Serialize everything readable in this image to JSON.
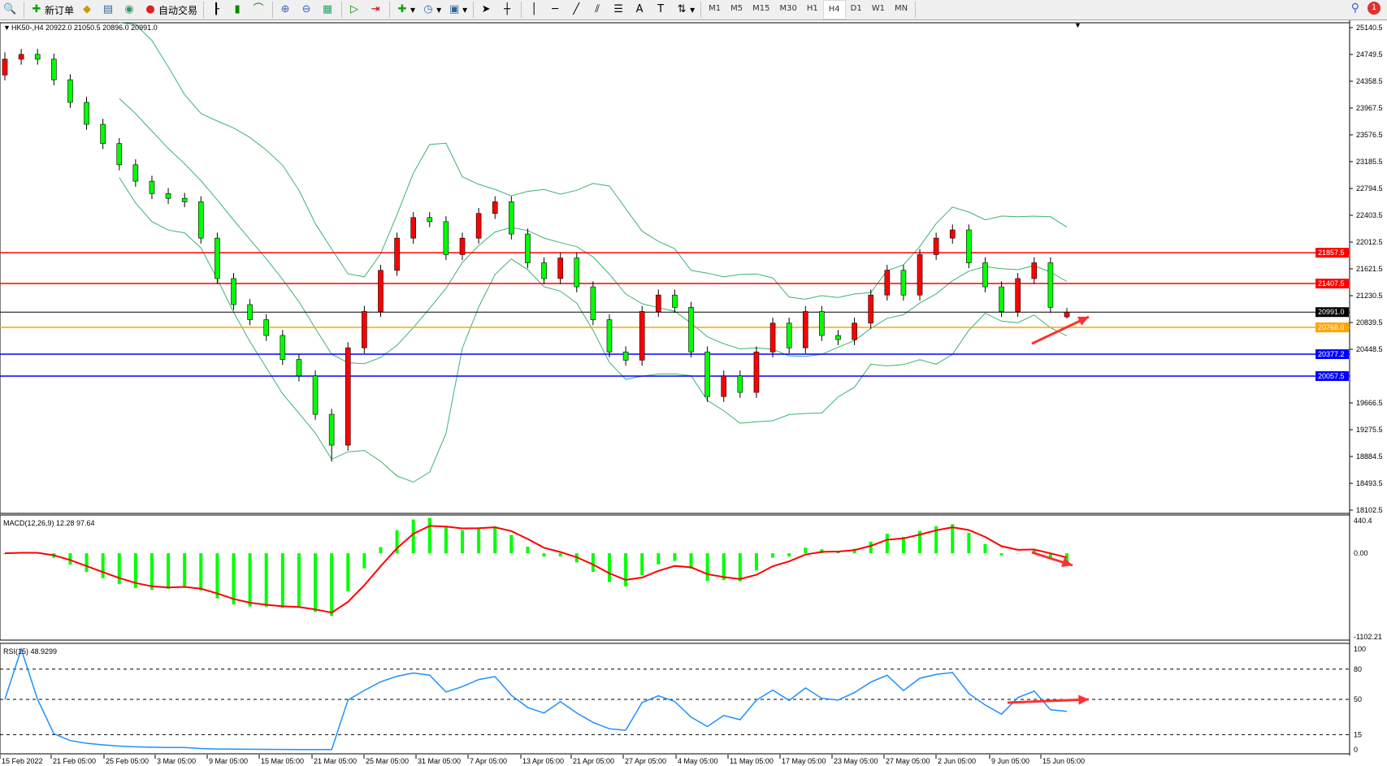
{
  "toolbar": {
    "new_order_label": "新订单",
    "auto_trade_label": "自动交易",
    "timeframes": [
      "M1",
      "M5",
      "M15",
      "M30",
      "H1",
      "H4",
      "D1",
      "W1",
      "MN"
    ],
    "active_timeframe": "H4",
    "notification_count": "1"
  },
  "chart": {
    "header": "HK50-,H4  20922.0 21050.5 20896.0 20991.0",
    "symbol": "HK50-",
    "price_axis": [
      "25140.5",
      "24749.5",
      "24358.5",
      "23967.5",
      "23576.5",
      "23185.5",
      "22794.5",
      "22403.5",
      "22012.5",
      "21621.5",
      "21230.5",
      "20839.5",
      "20448.5",
      "19666.5",
      "19275.5",
      "18884.5",
      "18493.5",
      "18102.5"
    ],
    "price_range": [
      18102.5,
      25140.5
    ],
    "levels": [
      {
        "price": 21857.5,
        "label": "21857.5",
        "color": "#ff0000"
      },
      {
        "price": 21407.5,
        "label": "21407.5",
        "color": "#ff0000"
      },
      {
        "price": 20991.0,
        "label": "20991.0",
        "color": "#000000"
      },
      {
        "price": 20768.0,
        "label": "20768.0",
        "color": "#ffa500"
      },
      {
        "price": 20377.2,
        "label": "20377.2",
        "color": "#0000ff"
      },
      {
        "price": 20057.5,
        "label": "20057.5",
        "color": "#0000ff"
      }
    ],
    "colors": {
      "up": "#ff0000",
      "down": "#00ff00",
      "bands": "#3cb371",
      "macd_hist": "#00ff00",
      "signal": "#ff0000",
      "rsi": "#1e90ff",
      "arrow": "#ff3030"
    },
    "candles": [
      [
        24450,
        24780,
        24370,
        24680
      ],
      [
        24680,
        24830,
        24600,
        24750
      ],
      [
        24750,
        24830,
        24600,
        24680
      ],
      [
        24680,
        24760,
        24300,
        24380
      ],
      [
        24380,
        24460,
        23970,
        24050
      ],
      [
        24050,
        24130,
        23650,
        23730
      ],
      [
        23730,
        23810,
        23370,
        23450
      ],
      [
        23450,
        23530,
        23060,
        23140
      ],
      [
        23140,
        23220,
        22820,
        22900
      ],
      [
        22900,
        22980,
        22640,
        22720
      ],
      [
        22720,
        22800,
        22570,
        22650
      ],
      [
        22650,
        22730,
        22520,
        22600
      ],
      [
        22600,
        22680,
        21990,
        22070
      ],
      [
        22070,
        22150,
        21400,
        21480
      ],
      [
        21480,
        21560,
        21020,
        21100
      ],
      [
        21100,
        21180,
        20800,
        20880
      ],
      [
        20880,
        20960,
        20570,
        20650
      ],
      [
        20650,
        20730,
        20220,
        20300
      ],
      [
        20300,
        20380,
        19980,
        20060
      ],
      [
        20060,
        20140,
        19420,
        19500
      ],
      [
        19500,
        19580,
        18810,
        19050
      ],
      [
        19050,
        20550,
        18970,
        20470
      ],
      [
        20470,
        21080,
        20390,
        21000
      ],
      [
        21000,
        21680,
        20920,
        21600
      ],
      [
        21600,
        22150,
        21520,
        22070
      ],
      [
        22070,
        22450,
        21990,
        22370
      ],
      [
        22370,
        22450,
        22230,
        22310
      ],
      [
        22310,
        22390,
        21750,
        21830
      ],
      [
        21830,
        22150,
        21750,
        22070
      ],
      [
        22070,
        22510,
        21990,
        22430
      ],
      [
        22430,
        22680,
        22350,
        22600
      ],
      [
        22600,
        22680,
        22050,
        22130
      ],
      [
        22130,
        22210,
        21630,
        21710
      ],
      [
        21710,
        21790,
        21400,
        21480
      ],
      [
        21480,
        21860,
        21400,
        21780
      ],
      [
        21780,
        21860,
        21280,
        21360
      ],
      [
        21360,
        21440,
        20800,
        20880
      ],
      [
        20880,
        20960,
        20330,
        20410
      ],
      [
        20410,
        20490,
        20210,
        20290
      ],
      [
        20290,
        21080,
        20210,
        21000
      ],
      [
        21000,
        21320,
        20920,
        21240
      ],
      [
        21240,
        21320,
        20980,
        21060
      ],
      [
        21060,
        21140,
        20330,
        20410
      ],
      [
        20410,
        20490,
        19680,
        19760
      ],
      [
        19760,
        20140,
        19680,
        20060
      ],
      [
        20060,
        20140,
        19740,
        19820
      ],
      [
        19820,
        20490,
        19740,
        20410
      ],
      [
        20410,
        20910,
        20330,
        20830
      ],
      [
        20830,
        20910,
        20390,
        20470
      ],
      [
        20470,
        21080,
        20390,
        21000
      ],
      [
        21000,
        21080,
        20570,
        20650
      ],
      [
        20650,
        20730,
        20510,
        20590
      ],
      [
        20590,
        20910,
        20510,
        20830
      ],
      [
        20830,
        21320,
        20750,
        21240
      ],
      [
        21240,
        21680,
        21160,
        21600
      ],
      [
        21600,
        21680,
        21160,
        21240
      ],
      [
        21240,
        21910,
        21160,
        21830
      ],
      [
        21830,
        22150,
        21750,
        22070
      ],
      [
        22070,
        22270,
        21990,
        22190
      ],
      [
        22190,
        22270,
        21630,
        21710
      ],
      [
        21710,
        21790,
        21280,
        21360
      ],
      [
        21360,
        21440,
        20920,
        21000
      ],
      [
        21000,
        21560,
        20920,
        21480
      ],
      [
        21480,
        21790,
        21400,
        21710
      ],
      [
        21710,
        21790,
        20980,
        21060
      ],
      [
        20922,
        21050.5,
        20896,
        20991
      ]
    ],
    "dates": [
      "15 Feb 2022",
      "21 Feb 05:00",
      "25 Feb 05:00",
      "3 Mar 05:00",
      "9 Mar 05:00",
      "15 Mar 05:00",
      "21 Mar 05:00",
      "25 Mar 05:00",
      "31 Mar 05:00",
      "7 Apr 05:00",
      "13 Apr 05:00",
      "21 Apr 05:00",
      "27 Apr 05:00",
      "4 May 05:00",
      "11 May 05:00",
      "17 May 05:00",
      "23 May 05:00",
      "27 May 05:00",
      "2 Jun 05:00",
      "9 Jun 05:00",
      "15 Jun 05:00"
    ]
  },
  "macd": {
    "header": "MACD(12,26,9) 12.28 97.64",
    "axis": [
      "440.4",
      "0.00",
      "-1102.21"
    ],
    "range": [
      -1102.21,
      440.4
    ]
  },
  "rsi": {
    "header": "RSI(15) 48.9299",
    "axis": [
      "100",
      "80",
      "50",
      "15",
      "0"
    ],
    "levels": [
      80,
      50,
      15
    ]
  }
}
